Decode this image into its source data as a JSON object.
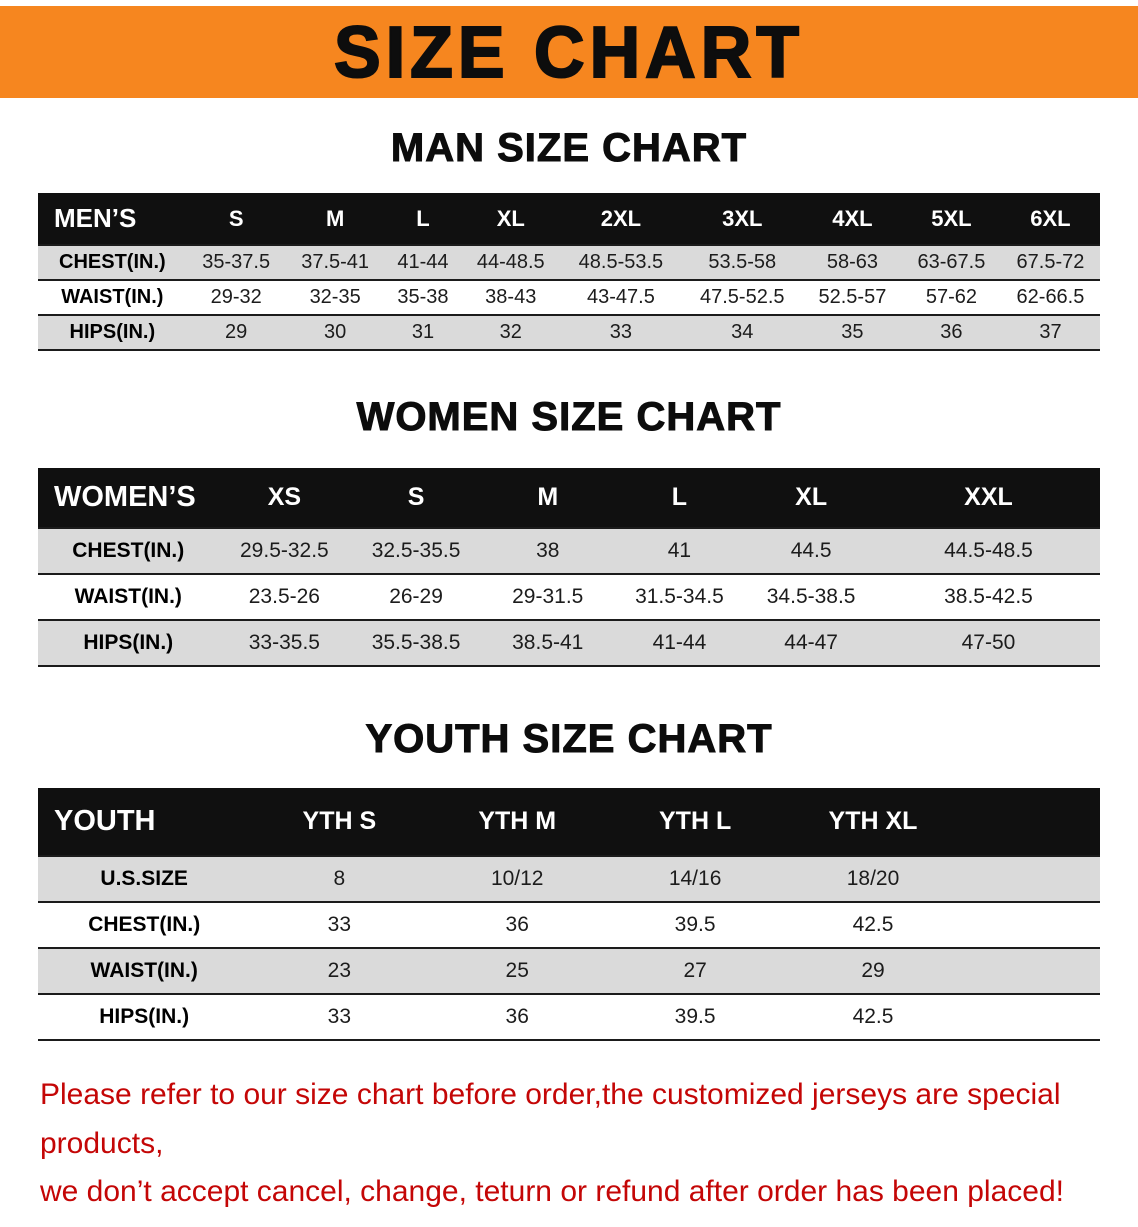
{
  "banner": {
    "title": "SIZE CHART",
    "bg_color": "#f6861f",
    "text_color": "#0d0d0d"
  },
  "sections": [
    {
      "heading": "MAN SIZE CHART",
      "table": {
        "header": [
          "MEN’S",
          "S",
          "M",
          "L",
          "XL",
          "2XL",
          "3XL",
          "4XL",
          "5XL",
          "6XL"
        ],
        "rows": [
          [
            "CHEST(IN.)",
            "35-37.5",
            "37.5-41",
            "41-44",
            "44-48.5",
            "48.5-53.5",
            "53.5-58",
            "58-63",
            "63-67.5",
            "67.5-72"
          ],
          [
            "WAIST(IN.)",
            "29-32",
            "32-35",
            "35-38",
            "38-43",
            "43-47.5",
            "47.5-52.5",
            "52.5-57",
            "57-62",
            "62-66.5"
          ],
          [
            "HIPS(IN.)",
            "29",
            "30",
            "31",
            "32",
            "33",
            "34",
            "35",
            "36",
            "37"
          ]
        ]
      }
    },
    {
      "heading": "WOMEN SIZE CHART",
      "table": {
        "header": [
          "WOMEN’S",
          "XS",
          "S",
          "M",
          "L",
          "XL",
          "XXL"
        ],
        "rows": [
          [
            "CHEST(IN.)",
            "29.5-32.5",
            "32.5-35.5",
            "38",
            "41",
            "44.5",
            "44.5-48.5"
          ],
          [
            "WAIST(IN.)",
            "23.5-26",
            "26-29",
            "29-31.5",
            "31.5-34.5",
            "34.5-38.5",
            "38.5-42.5"
          ],
          [
            "HIPS(IN.)",
            "33-35.5",
            "35.5-38.5",
            "38.5-41",
            "41-44",
            "44-47",
            "47-50"
          ]
        ]
      }
    },
    {
      "heading": "YOUTH SIZE CHART",
      "table": {
        "header": [
          "YOUTH",
          "YTH S",
          "YTH M",
          "YTH L",
          "YTH XL"
        ],
        "rows": [
          [
            "U.S.SIZE",
            "8",
            "10/12",
            "14/16",
            "18/20"
          ],
          [
            "CHEST(IN.)",
            "33",
            "36",
            "39.5",
            "42.5"
          ],
          [
            "WAIST(IN.)",
            "23",
            "25",
            "27",
            "29"
          ],
          [
            "HIPS(IN.)",
            "33",
            "36",
            "39.5",
            "42.5"
          ]
        ]
      }
    }
  ],
  "footer": {
    "line1": "Please refer to our size chart before order,the customized jerseys are special products,",
    "line2": "we don’t accept cancel, change, teturn or refund after order has been placed!",
    "text_color": "#c40606"
  },
  "colors": {
    "banner_orange": "#f6861f",
    "table_header_black": "#101010",
    "row_stripe_gray": "#dadada",
    "disclaimer_red": "#c40606"
  }
}
